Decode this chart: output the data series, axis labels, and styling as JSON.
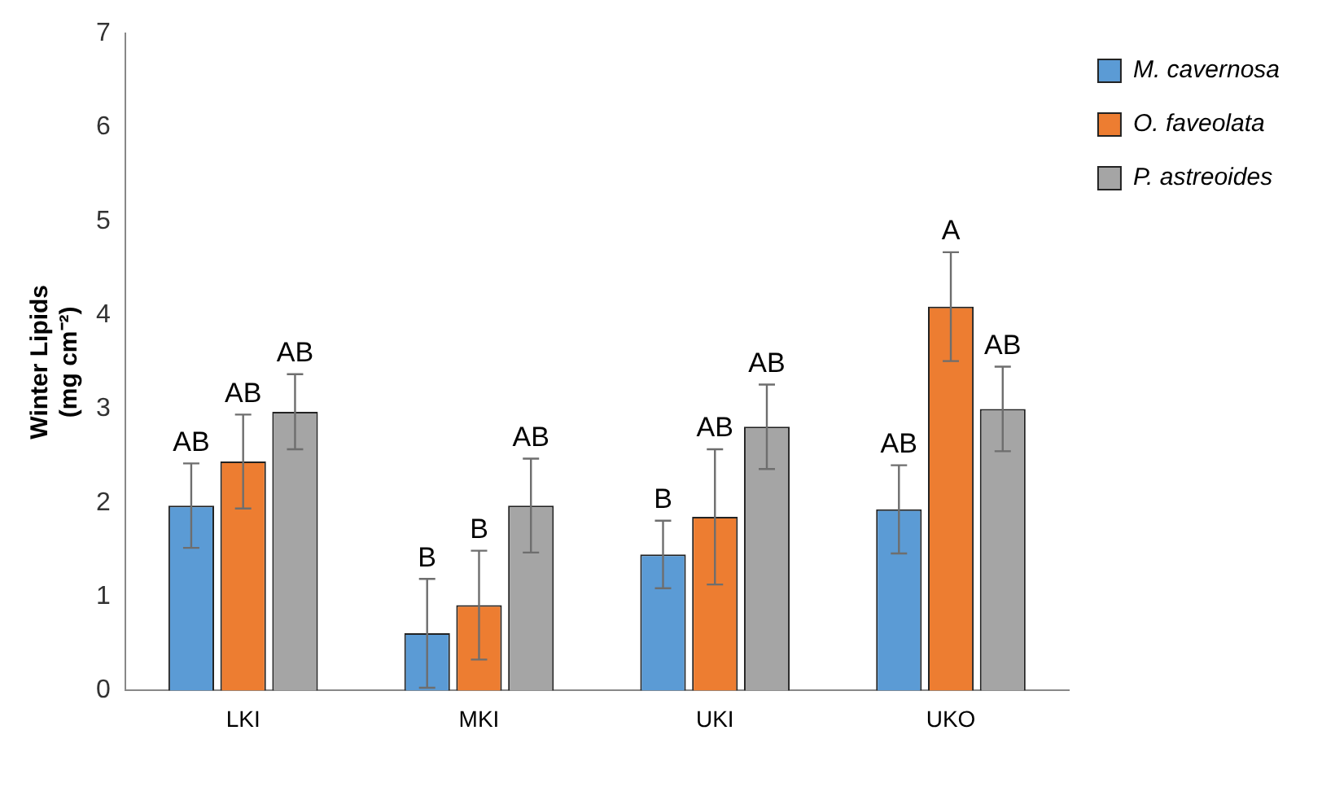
{
  "chart_data": {
    "type": "bar",
    "ylabel": "Winter Lipids\n(mg cm⁻²)",
    "categories": [
      "LKI",
      "MKI",
      "UKI",
      "UKO"
    ],
    "series": [
      {
        "name": "M. cavernosa",
        "color": "#5b9bd5",
        "values": [
          1.97,
          0.61,
          1.45,
          1.93
        ],
        "errors": [
          0.45,
          0.58,
          0.36,
          0.47
        ],
        "value_labels": [
          "AB",
          "B",
          "B",
          "AB"
        ]
      },
      {
        "name": "O. faveolata",
        "color": "#ed7d31",
        "values": [
          2.44,
          0.91,
          1.85,
          4.09
        ],
        "errors": [
          0.5,
          0.58,
          0.72,
          0.58
        ],
        "value_labels": [
          "AB",
          "B",
          "AB",
          "A"
        ]
      },
      {
        "name": "P. astreoides",
        "color": "#a5a5a5",
        "values": [
          2.97,
          1.97,
          2.81,
          3.0
        ],
        "errors": [
          0.4,
          0.5,
          0.45,
          0.45
        ],
        "value_labels": [
          "AB",
          "AB",
          "AB",
          "AB"
        ]
      }
    ],
    "ylim": [
      0,
      7
    ],
    "yticks": [
      0,
      1,
      2,
      3,
      4,
      5,
      6,
      7
    ],
    "grid": false,
    "legend": "top right"
  }
}
